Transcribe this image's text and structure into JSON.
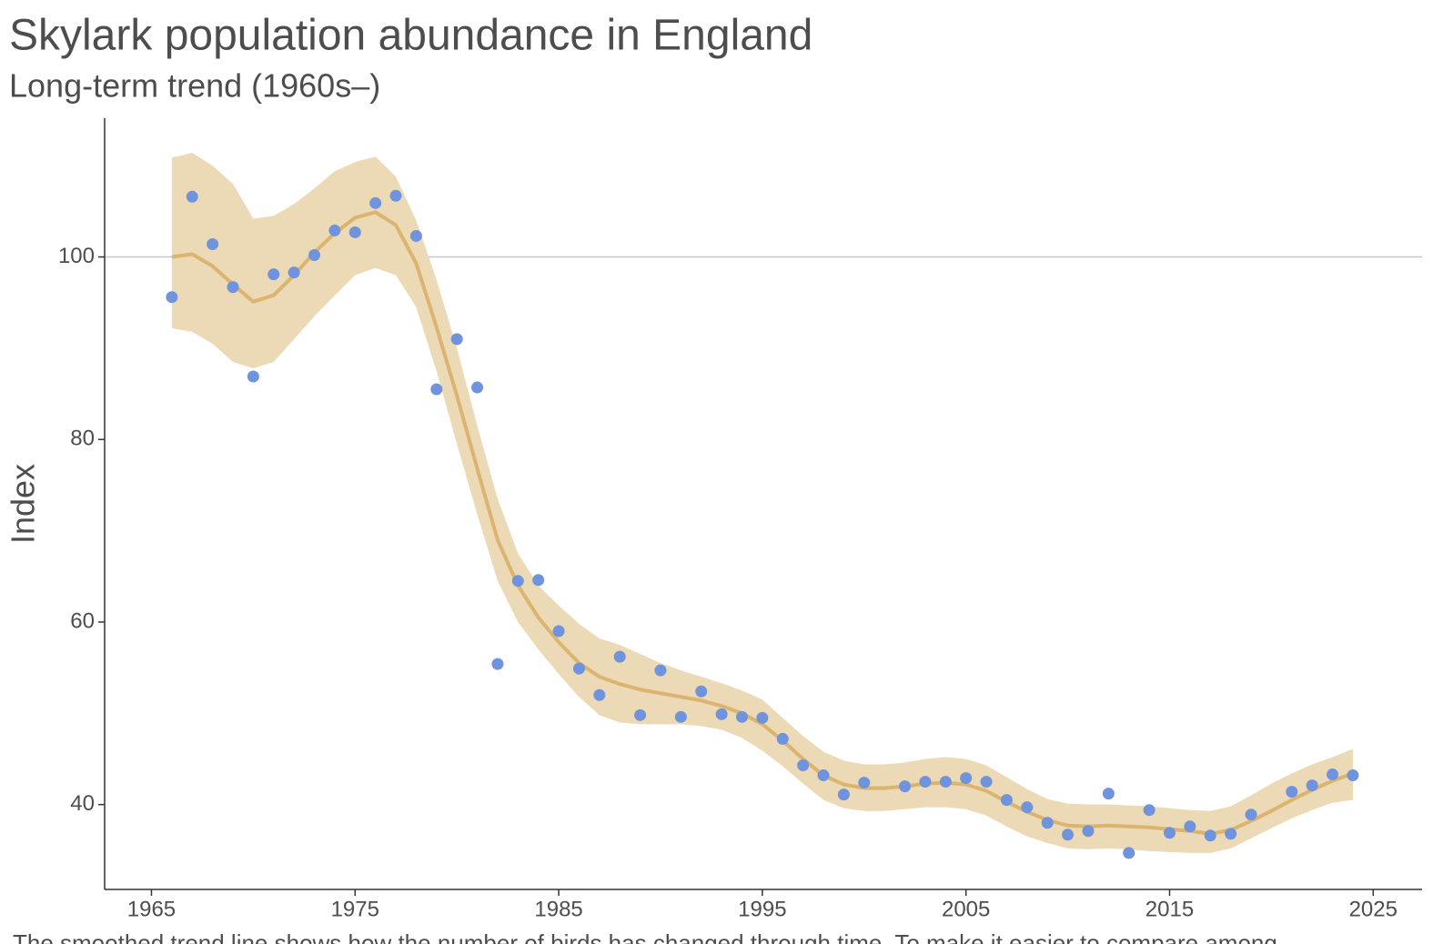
{
  "chart_data": {
    "type": "scatter",
    "title": "Skylark population abundance in England",
    "subtitle": "Long-term trend (1960s–)",
    "y_label": "Index",
    "caption": "The smoothed trend line shows how the number of birds has changed through time. To make it easier to compare among",
    "xlim": [
      1962.7,
      2027.4
    ],
    "ylim": [
      30.7,
      115.2
    ],
    "xticks": [
      1965,
      1975,
      1985,
      1995,
      2005,
      2015,
      2025
    ],
    "yticks": [
      40,
      60,
      80,
      100
    ],
    "reference_line": 100,
    "points": {
      "color": "#6f93dd",
      "x": [
        1966,
        1967,
        1968,
        1969,
        1970,
        1971,
        1972,
        1973,
        1974,
        1975,
        1976,
        1977,
        1978,
        1979,
        1980,
        1981,
        1982,
        1983,
        1984,
        1985,
        1986,
        1987,
        1988,
        1989,
        1990,
        1991,
        1992,
        1993,
        1994,
        1995,
        1996,
        1997,
        1998,
        1999,
        2000,
        2002,
        2003,
        2004,
        2005,
        2006,
        2007,
        2008,
        2009,
        2010,
        2011,
        2012,
        2013,
        2014,
        2015,
        2016,
        2017,
        2018,
        2019,
        2021,
        2022,
        2023,
        2024
      ],
      "values": [
        95.6,
        106.6,
        101.4,
        96.7,
        86.9,
        98.1,
        98.3,
        100.2,
        102.9,
        102.7,
        105.9,
        106.7,
        102.3,
        85.5,
        91.0,
        85.7,
        55.4,
        64.5,
        64.6,
        59.0,
        54.9,
        52.0,
        56.2,
        49.8,
        54.7,
        49.6,
        52.4,
        49.9,
        49.6,
        49.5,
        47.2,
        44.3,
        43.2,
        41.1,
        42.4,
        42.0,
        42.5,
        42.5,
        42.9,
        42.5,
        40.5,
        39.7,
        38.0,
        36.7,
        37.1,
        41.2,
        34.7,
        39.4,
        36.9,
        37.6,
        36.6,
        36.8,
        38.9,
        41.4,
        42.1,
        43.3,
        43.2
      ]
    },
    "trend": {
      "color": "#dbb46f",
      "band_color": "#ecd9b5",
      "x": [
        1966,
        1967,
        1968,
        1969,
        1970,
        1971,
        1972,
        1973,
        1974,
        1975,
        1976,
        1977,
        1978,
        1979,
        1980,
        1981,
        1982,
        1983,
        1984,
        1985,
        1986,
        1987,
        1988,
        1989,
        1990,
        1991,
        1992,
        1993,
        1994,
        1995,
        1996,
        1997,
        1998,
        1999,
        2000,
        2001,
        2002,
        2003,
        2004,
        2005,
        2006,
        2007,
        2008,
        2009,
        2010,
        2011,
        2012,
        2013,
        2014,
        2015,
        2016,
        2017,
        2018,
        2019,
        2020,
        2021,
        2022,
        2023,
        2024
      ],
      "values": [
        100.0,
        100.3,
        99.0,
        97.0,
        95.1,
        95.8,
        98.0,
        100.5,
        102.6,
        104.3,
        104.9,
        103.5,
        99.3,
        92.3,
        84.8,
        76.8,
        69.0,
        64.0,
        60.5,
        57.8,
        55.5,
        54.0,
        53.2,
        52.6,
        52.2,
        51.8,
        51.4,
        50.8,
        50.0,
        48.8,
        47.0,
        45.0,
        43.2,
        42.2,
        41.8,
        41.8,
        42.0,
        42.3,
        42.4,
        42.2,
        41.5,
        40.3,
        39.2,
        38.3,
        37.7,
        37.6,
        37.7,
        37.6,
        37.5,
        37.3,
        37.1,
        36.8,
        37.2,
        38.2,
        39.3,
        40.5,
        41.6,
        42.6,
        43.4
      ],
      "upper": [
        110.9,
        111.4,
        110.0,
        108.0,
        104.2,
        104.5,
        105.8,
        107.5,
        109.4,
        110.4,
        111.0,
        108.8,
        104.0,
        97.5,
        90.0,
        81.5,
        73.5,
        67.5,
        64.0,
        61.8,
        59.8,
        58.2,
        57.5,
        56.5,
        55.5,
        54.7,
        54.0,
        53.3,
        52.5,
        51.5,
        49.5,
        47.5,
        45.8,
        44.8,
        44.4,
        44.4,
        44.6,
        45.0,
        45.2,
        45.0,
        44.3,
        43.0,
        41.7,
        40.6,
        40.1,
        40.0,
        40.0,
        39.9,
        39.8,
        39.6,
        39.4,
        39.3,
        39.8,
        41.0,
        42.3,
        43.4,
        44.4,
        45.2,
        46.1
      ],
      "lower": [
        92.2,
        91.8,
        90.5,
        88.5,
        87.8,
        88.5,
        91.0,
        93.5,
        95.8,
        98.0,
        98.8,
        98.0,
        94.5,
        87.5,
        79.5,
        71.8,
        64.5,
        60.0,
        57.0,
        54.3,
        51.8,
        49.8,
        49.0,
        48.8,
        48.8,
        48.8,
        48.6,
        48.2,
        47.3,
        45.9,
        44.2,
        42.3,
        40.5,
        39.6,
        39.3,
        39.3,
        39.5,
        39.7,
        39.7,
        39.5,
        38.8,
        37.6,
        36.5,
        35.8,
        35.2,
        35.1,
        35.2,
        35.1,
        34.9,
        34.8,
        34.7,
        34.7,
        35.2,
        36.3,
        37.4,
        38.5,
        39.4,
        40.2,
        40.5
      ]
    }
  }
}
